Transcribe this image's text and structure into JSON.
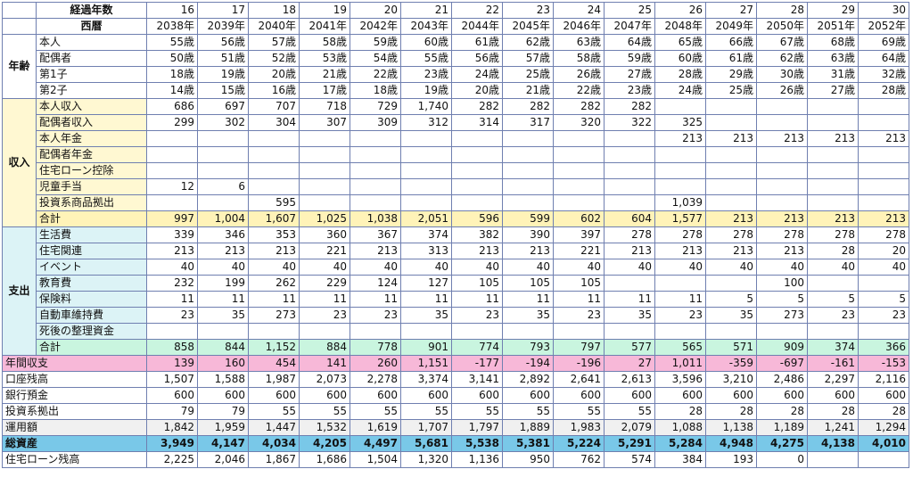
{
  "header": {
    "elapsed_label": "経過年数",
    "calendar_label": "西暦",
    "elapsed": [
      "16",
      "17",
      "18",
      "19",
      "20",
      "21",
      "22",
      "23",
      "24",
      "25",
      "26",
      "27",
      "28",
      "29",
      "30"
    ],
    "years": [
      "2038年",
      "2039年",
      "2040年",
      "2041年",
      "2042年",
      "2043年",
      "2044年",
      "2045年",
      "2046年",
      "2047年",
      "2048年",
      "2049年",
      "2050年",
      "2051年",
      "2052年"
    ]
  },
  "sections": [
    {
      "key": "age",
      "title": "年齢",
      "rows": [
        {
          "label": "本人",
          "values": [
            "55歳",
            "56歳",
            "57歳",
            "58歳",
            "59歳",
            "60歳",
            "61歳",
            "62歳",
            "63歳",
            "64歳",
            "65歳",
            "66歳",
            "67歳",
            "68歳",
            "69歳"
          ]
        },
        {
          "label": "配偶者",
          "values": [
            "50歳",
            "51歳",
            "52歳",
            "53歳",
            "54歳",
            "55歳",
            "56歳",
            "57歳",
            "58歳",
            "59歳",
            "60歳",
            "61歳",
            "62歳",
            "63歳",
            "64歳"
          ]
        },
        {
          "label": "第1子",
          "values": [
            "18歳",
            "19歳",
            "20歳",
            "21歳",
            "22歳",
            "23歳",
            "24歳",
            "25歳",
            "26歳",
            "27歳",
            "28歳",
            "29歳",
            "30歳",
            "31歳",
            "32歳"
          ]
        },
        {
          "label": "第2子",
          "values": [
            "14歳",
            "15歳",
            "16歳",
            "17歳",
            "18歳",
            "19歳",
            "20歳",
            "21歳",
            "22歳",
            "23歳",
            "24歳",
            "25歳",
            "26歳",
            "27歳",
            "28歳"
          ]
        }
      ]
    },
    {
      "key": "income",
      "title": "収入",
      "rows": [
        {
          "label": "本人収入",
          "values": [
            "686",
            "697",
            "707",
            "718",
            "729",
            "1,740",
            "282",
            "282",
            "282",
            "282",
            "",
            "",
            "",
            "",
            ""
          ]
        },
        {
          "label": "配偶者収入",
          "values": [
            "299",
            "302",
            "304",
            "307",
            "309",
            "312",
            "314",
            "317",
            "320",
            "322",
            "325",
            "",
            "",
            "",
            ""
          ]
        },
        {
          "label": "本人年金",
          "values": [
            "",
            "",
            "",
            "",
            "",
            "",
            "",
            "",
            "",
            "",
            "213",
            "213",
            "213",
            "213",
            "213"
          ]
        },
        {
          "label": "配偶者年金",
          "values": [
            "",
            "",
            "",
            "",
            "",
            "",
            "",
            "",
            "",
            "",
            "",
            "",
            "",
            "",
            ""
          ]
        },
        {
          "label": "住宅ローン控除",
          "values": [
            "",
            "",
            "",
            "",
            "",
            "",
            "",
            "",
            "",
            "",
            "",
            "",
            "",
            "",
            ""
          ]
        },
        {
          "label": "児童手当",
          "values": [
            "12",
            "6",
            "",
            "",
            "",
            "",
            "",
            "",
            "",
            "",
            "",
            "",
            "",
            "",
            ""
          ]
        },
        {
          "label": "投資系商品拠出",
          "values": [
            "",
            "",
            "595",
            "",
            "",
            "",
            "",
            "",
            "",
            "",
            "1,039",
            "",
            "",
            "",
            ""
          ]
        }
      ],
      "total": {
        "label": "合計",
        "values": [
          "997",
          "1,004",
          "1,607",
          "1,025",
          "1,038",
          "2,051",
          "596",
          "599",
          "602",
          "604",
          "1,577",
          "213",
          "213",
          "213",
          "213"
        ]
      }
    },
    {
      "key": "expense",
      "title": "支出",
      "rows": [
        {
          "label": "生活費",
          "values": [
            "339",
            "346",
            "353",
            "360",
            "367",
            "374",
            "382",
            "390",
            "397",
            "278",
            "278",
            "278",
            "278",
            "278",
            "278"
          ]
        },
        {
          "label": "住宅関連",
          "values": [
            "213",
            "213",
            "213",
            "221",
            "213",
            "313",
            "213",
            "213",
            "221",
            "213",
            "213",
            "213",
            "213",
            "28",
            "20"
          ]
        },
        {
          "label": "イベント",
          "values": [
            "40",
            "40",
            "40",
            "40",
            "40",
            "40",
            "40",
            "40",
            "40",
            "40",
            "40",
            "40",
            "40",
            "40",
            "40"
          ]
        },
        {
          "label": "教育費",
          "values": [
            "232",
            "199",
            "262",
            "229",
            "124",
            "127",
            "105",
            "105",
            "105",
            "",
            "",
            "",
            "100",
            "",
            ""
          ]
        },
        {
          "label": "保険料",
          "values": [
            "11",
            "11",
            "11",
            "11",
            "11",
            "11",
            "11",
            "11",
            "11",
            "11",
            "11",
            "5",
            "5",
            "5",
            "5"
          ]
        },
        {
          "label": "自動車維持費",
          "values": [
            "23",
            "35",
            "273",
            "23",
            "23",
            "35",
            "23",
            "35",
            "23",
            "35",
            "23",
            "35",
            "273",
            "23",
            "23"
          ]
        },
        {
          "label": "死後の整理資金",
          "values": [
            "",
            "",
            "",
            "",
            "",
            "",
            "",
            "",
            "",
            "",
            "",
            "",
            "",
            "",
            ""
          ]
        }
      ],
      "total": {
        "label": "合計",
        "values": [
          "858",
          "844",
          "1,152",
          "884",
          "778",
          "901",
          "774",
          "793",
          "797",
          "577",
          "565",
          "571",
          "909",
          "374",
          "366"
        ]
      }
    }
  ],
  "summary": [
    {
      "key": "annual",
      "label": "年間収支",
      "values": [
        "139",
        "160",
        "454",
        "141",
        "260",
        "1,151",
        "-177",
        "-194",
        "-196",
        "27",
        "1,011",
        "-359",
        "-697",
        "-161",
        "-153"
      ]
    },
    {
      "key": "account",
      "label": "口座残高",
      "values": [
        "1,507",
        "1,588",
        "1,987",
        "2,073",
        "2,278",
        "3,374",
        "3,141",
        "2,892",
        "2,641",
        "2,613",
        "3,596",
        "3,210",
        "2,486",
        "2,297",
        "2,116"
      ]
    },
    {
      "key": "deposit",
      "label": "銀行預金",
      "values": [
        "600",
        "600",
        "600",
        "600",
        "600",
        "600",
        "600",
        "600",
        "600",
        "600",
        "600",
        "600",
        "600",
        "600",
        "600"
      ]
    },
    {
      "key": "invest",
      "label": "投資系拠出",
      "values": [
        "79",
        "79",
        "55",
        "55",
        "55",
        "55",
        "55",
        "55",
        "55",
        "55",
        "28",
        "28",
        "28",
        "28",
        "28"
      ]
    },
    {
      "key": "managed",
      "label": "運用額",
      "values": [
        "1,842",
        "1,959",
        "1,447",
        "1,532",
        "1,619",
        "1,707",
        "1,797",
        "1,889",
        "1,983",
        "2,079",
        "1,088",
        "1,138",
        "1,189",
        "1,241",
        "1,294"
      ]
    },
    {
      "key": "assets",
      "label": "総資産",
      "values": [
        "3,949",
        "4,147",
        "4,034",
        "4,205",
        "4,497",
        "5,681",
        "5,538",
        "5,381",
        "5,224",
        "5,291",
        "5,284",
        "4,948",
        "4,275",
        "4,138",
        "4,010"
      ]
    },
    {
      "key": "loan",
      "label": "住宅ローン残高",
      "values": [
        "2,225",
        "2,046",
        "1,867",
        "1,686",
        "1,504",
        "1,320",
        "1,136",
        "950",
        "762",
        "574",
        "384",
        "193",
        "0",
        "",
        ""
      ]
    }
  ]
}
